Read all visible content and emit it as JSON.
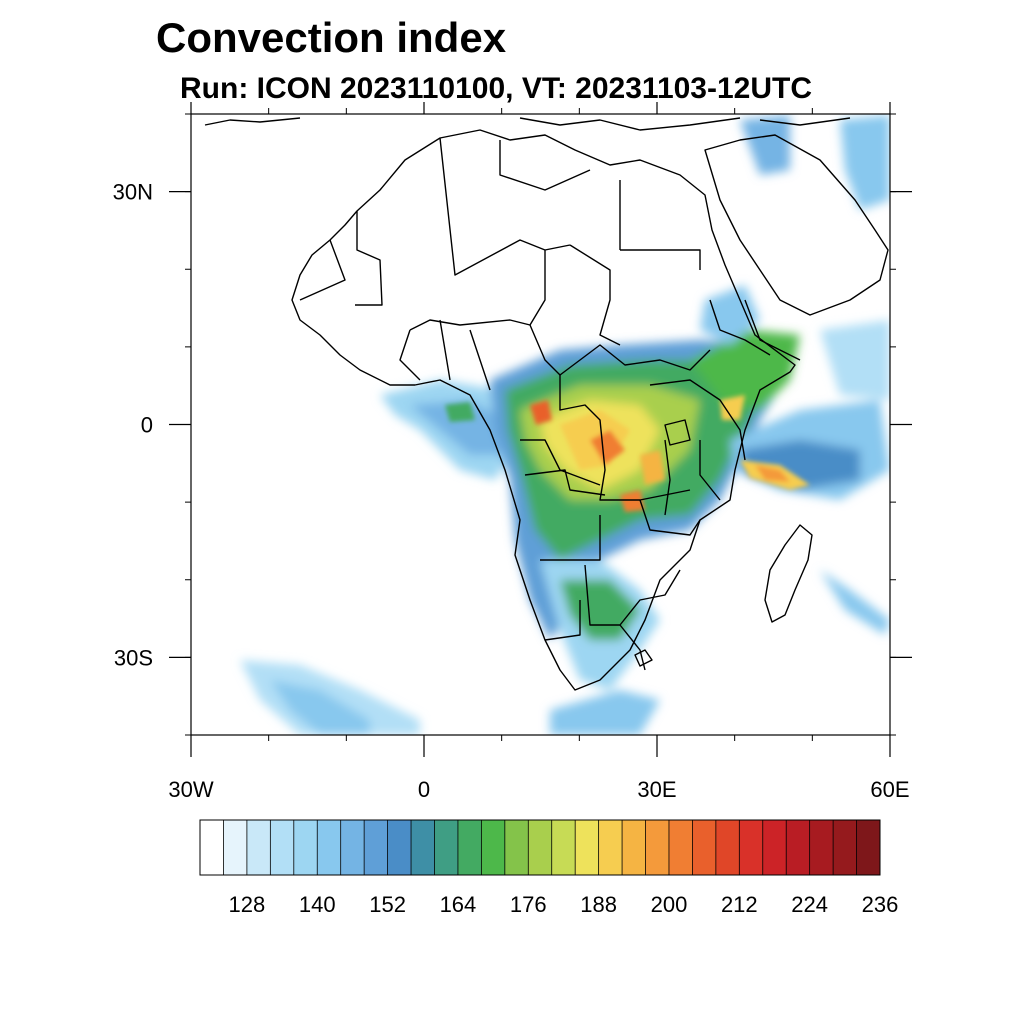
{
  "title": "Convection index",
  "subtitle": "Run: ICON 2023110100,  VT: 20231103-12UTC",
  "axes": {
    "y_ticks": [
      {
        "label": "30N",
        "lat": 30
      },
      {
        "label": "0",
        "lat": 0
      },
      {
        "label": "30S",
        "lat": -30
      }
    ],
    "x_ticks": [
      {
        "label": "30W",
        "lon": -30
      },
      {
        "label": "0",
        "lon": 0
      },
      {
        "label": "30E",
        "lon": 30
      },
      {
        "label": "60E",
        "lon": 60
      }
    ],
    "lon_range": [
      -30,
      60
    ],
    "lat_range": [
      -40,
      40
    ]
  },
  "colorbar": {
    "labels": [
      "128",
      "140",
      "152",
      "164",
      "176",
      "188",
      "200",
      "212",
      "224",
      "236"
    ],
    "colors": [
      "#ffffff",
      "#e6f4fc",
      "#c9e8f8",
      "#b2dff6",
      "#9dd6f2",
      "#88c8ee",
      "#74b4e4",
      "#5f9fd7",
      "#4a8dc7",
      "#3e8fa6",
      "#3f9e84",
      "#43aa62",
      "#4db84a",
      "#84c34a",
      "#a9cf4d",
      "#c7db55",
      "#eee25b",
      "#f6cd50",
      "#f5b443",
      "#f49a3b",
      "#f07e33",
      "#e9602c",
      "#e04628",
      "#d93129",
      "#cc2327",
      "#b91d24",
      "#a71b20",
      "#951a1d",
      "#7e171a"
    ]
  }
}
